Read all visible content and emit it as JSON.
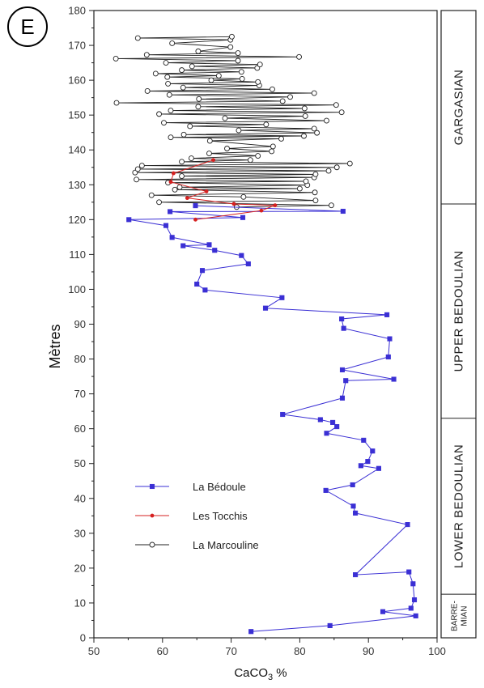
{
  "panel_label": "E",
  "chart_data": {
    "type": "line",
    "xlabel": "CaCO3 %",
    "ylabel": "Mètres",
    "xlim": [
      50,
      100
    ],
    "ylim": [
      0,
      180
    ],
    "x_ticks": [
      50,
      60,
      70,
      80,
      90,
      100
    ],
    "y_ticks": [
      0,
      10,
      20,
      30,
      40,
      50,
      60,
      70,
      80,
      90,
      100,
      110,
      120,
      130,
      140,
      150,
      160,
      170,
      180
    ],
    "legend_position": "lower-left",
    "stages": [
      {
        "name": "GARGASIAN",
        "from": 124.5,
        "to": 180
      },
      {
        "name": "UPPER BEDOULIAN",
        "from": 63,
        "to": 124.5
      },
      {
        "name": "LOWER BEDOULIAN",
        "from": 12.5,
        "to": 63
      },
      {
        "name": "BARRE-MIAN",
        "lines": [
          "BARRE-",
          "MIAN"
        ],
        "from": 0,
        "to": 12.5
      }
    ],
    "series": [
      {
        "name": "La Bédoule",
        "color": "#3a2fd4",
        "marker": "square",
        "points": [
          [
            72.9,
            1.8
          ],
          [
            84.4,
            3.5
          ],
          [
            96.9,
            6.3
          ],
          [
            92.1,
            7.5
          ],
          [
            96.2,
            8.5
          ],
          [
            96.7,
            10.9
          ],
          [
            96.5,
            15.5
          ],
          [
            95.9,
            18.9
          ],
          [
            88.1,
            18.1
          ],
          [
            95.7,
            32.5
          ],
          [
            88.1,
            35.8
          ],
          [
            87.8,
            37.8
          ],
          [
            83.8,
            42.3
          ],
          [
            87.7,
            43.9
          ],
          [
            91.5,
            48.6
          ],
          [
            88.9,
            49.4
          ],
          [
            89.9,
            50.6
          ],
          [
            90.6,
            53.6
          ],
          [
            89.3,
            56.7
          ],
          [
            83.9,
            58.7
          ],
          [
            85.4,
            60.6
          ],
          [
            84.8,
            61.8
          ],
          [
            83.0,
            62.6
          ],
          [
            77.5,
            64.1
          ],
          [
            86.2,
            68.8
          ],
          [
            86.7,
            73.8
          ],
          [
            93.7,
            74.2
          ],
          [
            86.2,
            76.9
          ],
          [
            92.9,
            80.6
          ],
          [
            93.1,
            85.8
          ],
          [
            86.4,
            88.8
          ],
          [
            86.1,
            91.5
          ],
          [
            92.7,
            92.7
          ],
          [
            75.0,
            94.6
          ],
          [
            77.4,
            97.6
          ],
          [
            66.2,
            99.8
          ],
          [
            65.0,
            101.5
          ],
          [
            65.8,
            105.4
          ],
          [
            72.5,
            107.3
          ],
          [
            71.5,
            109.7
          ],
          [
            67.6,
            111.2
          ],
          [
            63.0,
            112.5
          ],
          [
            66.8,
            112.8
          ],
          [
            61.4,
            114.9
          ],
          [
            60.5,
            118.3
          ],
          [
            55.1,
            120.0
          ],
          [
            71.7,
            120.6
          ],
          [
            61.1,
            122.3
          ],
          [
            86.3,
            122.4
          ],
          [
            64.8,
            124.0
          ]
        ]
      },
      {
        "name": "Les Tocchis",
        "color": "#d62020",
        "marker": "dot",
        "points": [
          [
            64.8,
            120.0
          ],
          [
            74.4,
            122.6
          ],
          [
            76.4,
            124.1
          ],
          [
            70.4,
            124.5
          ],
          [
            63.6,
            126.2
          ],
          [
            66.4,
            128.1
          ],
          [
            61.2,
            130.8
          ],
          [
            61.6,
            133.3
          ],
          [
            67.4,
            137.1
          ]
        ]
      },
      {
        "name": "La Marcouline",
        "color": "#222222",
        "marker": "open-circle",
        "points": [
          [
            70.8,
            123.6
          ],
          [
            84.6,
            124.1
          ],
          [
            59.5,
            125.0
          ],
          [
            82.3,
            125.5
          ],
          [
            71.8,
            126.5
          ],
          [
            58.4,
            127.0
          ],
          [
            82.2,
            127.8
          ],
          [
            61.8,
            128.6
          ],
          [
            80.0,
            128.9
          ],
          [
            62.5,
            129.3
          ],
          [
            81.1,
            129.9
          ],
          [
            60.8,
            130.6
          ],
          [
            80.9,
            131.0
          ],
          [
            56.2,
            131.5
          ],
          [
            82.1,
            132.1
          ],
          [
            62.8,
            132.5
          ],
          [
            82.3,
            133.0
          ],
          [
            56.0,
            133.5
          ],
          [
            84.2,
            134.0
          ],
          [
            56.4,
            134.5
          ],
          [
            85.4,
            135.0
          ],
          [
            57.0,
            135.5
          ],
          [
            87.3,
            136.1
          ],
          [
            62.8,
            136.6
          ],
          [
            72.8,
            137.1
          ],
          [
            64.2,
            137.6
          ],
          [
            73.9,
            138.3
          ],
          [
            66.8,
            139.0
          ],
          [
            75.9,
            139.6
          ],
          [
            69.4,
            140.4
          ],
          [
            76.1,
            141.0
          ],
          [
            66.9,
            142.6
          ],
          [
            77.3,
            143.2
          ],
          [
            61.2,
            143.6
          ],
          [
            80.6,
            144.0
          ],
          [
            63.1,
            144.4
          ],
          [
            82.5,
            144.9
          ],
          [
            71.1,
            145.6
          ],
          [
            82.1,
            146.1
          ],
          [
            64.0,
            146.8
          ],
          [
            75.1,
            147.3
          ],
          [
            60.2,
            147.8
          ],
          [
            83.9,
            148.4
          ],
          [
            69.1,
            149.1
          ],
          [
            80.8,
            149.7
          ],
          [
            59.5,
            150.3
          ],
          [
            86.1,
            150.8
          ],
          [
            61.2,
            151.3
          ],
          [
            80.7,
            151.9
          ],
          [
            65.2,
            152.4
          ],
          [
            85.3,
            152.9
          ],
          [
            53.3,
            153.5
          ],
          [
            77.5,
            154.0
          ],
          [
            65.3,
            154.6
          ],
          [
            78.6,
            155.2
          ],
          [
            61.0,
            155.8
          ],
          [
            82.1,
            156.3
          ],
          [
            57.8,
            156.9
          ],
          [
            76.0,
            157.4
          ],
          [
            63.0,
            157.9
          ],
          [
            74.1,
            158.5
          ],
          [
            60.8,
            159.0
          ],
          [
            73.9,
            159.5
          ],
          [
            67.1,
            160.0
          ],
          [
            71.6,
            160.4
          ],
          [
            60.7,
            160.9
          ],
          [
            68.2,
            161.3
          ],
          [
            59.0,
            161.9
          ],
          [
            71.5,
            162.4
          ],
          [
            62.8,
            162.9
          ],
          [
            73.8,
            163.5
          ],
          [
            64.3,
            164.0
          ],
          [
            74.2,
            164.5
          ],
          [
            60.5,
            165.0
          ],
          [
            71.0,
            165.6
          ],
          [
            53.2,
            166.2
          ],
          [
            79.9,
            166.7
          ],
          [
            57.7,
            167.3
          ],
          [
            71.0,
            167.8
          ],
          [
            65.2,
            168.3
          ],
          [
            69.9,
            169.5
          ],
          [
            61.4,
            170.6
          ],
          [
            69.9,
            171.6
          ],
          [
            56.4,
            172.1
          ],
          [
            70.1,
            172.5
          ]
        ]
      }
    ]
  }
}
